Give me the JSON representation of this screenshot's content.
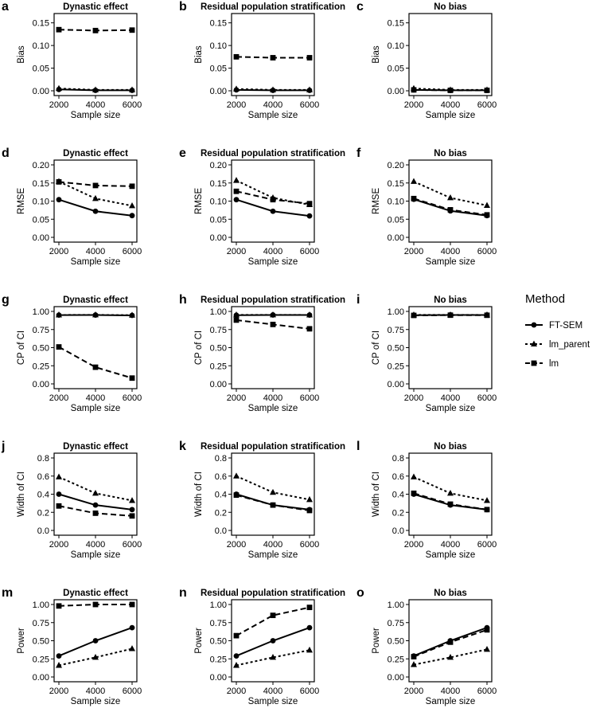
{
  "chart_data": {
    "type": "line",
    "x": [
      2000,
      4000,
      6000
    ],
    "xlabel": "Sample size",
    "xticks": [
      2000,
      4000,
      6000
    ],
    "xlim": [
      2000,
      6000
    ],
    "legend": {
      "title": "Method",
      "placement": "right",
      "entries": [
        {
          "name": "FT-SEM",
          "linestyle": "solid",
          "marker": "circle"
        },
        {
          "name": "lm_parent",
          "linestyle": "dotted",
          "marker": "triangle"
        },
        {
          "name": "lm",
          "linestyle": "dashed",
          "marker": "square"
        }
      ]
    },
    "columns": [
      "Dynastic effect",
      "Residual population stratification",
      "No bias"
    ],
    "rows": [
      {
        "ylabel": "Bias",
        "ylim": [
          0,
          0.16
        ],
        "yticks": [
          "0.00",
          "0.05",
          "0.10",
          "0.15"
        ],
        "letters": [
          "a",
          "b",
          "c"
        ],
        "panels": [
          {
            "FT-SEM": [
              0.003,
              0.001,
              0.001
            ],
            "lm_parent": [
              0.005,
              0.002,
              0.002
            ],
            "lm": [
              0.135,
              0.133,
              0.134
            ]
          },
          {
            "FT-SEM": [
              0.002,
              0.001,
              0.001
            ],
            "lm_parent": [
              0.004,
              0.002,
              0.002
            ],
            "lm": [
              0.075,
              0.073,
              0.073
            ]
          },
          {
            "FT-SEM": [
              0.002,
              0.001,
              0.001
            ],
            "lm_parent": [
              0.005,
              0.002,
              0.002
            ],
            "lm": [
              0.002,
              0.001,
              0.001
            ]
          }
        ]
      },
      {
        "ylabel": "RMSE",
        "ylim": [
          0,
          0.2
        ],
        "yticks": [
          "0.00",
          "0.05",
          "0.10",
          "0.15",
          "0.20"
        ],
        "letters": [
          "d",
          "e",
          "f"
        ],
        "panels": [
          {
            "FT-SEM": [
              0.104,
              0.072,
              0.06
            ],
            "lm_parent": [
              0.154,
              0.107,
              0.087
            ],
            "lm": [
              0.153,
              0.143,
              0.141
            ]
          },
          {
            "FT-SEM": [
              0.104,
              0.072,
              0.059
            ],
            "lm_parent": [
              0.157,
              0.109,
              0.09
            ],
            "lm": [
              0.127,
              0.104,
              0.093
            ]
          },
          {
            "FT-SEM": [
              0.105,
              0.073,
              0.06
            ],
            "lm_parent": [
              0.154,
              0.109,
              0.088
            ],
            "lm": [
              0.107,
              0.076,
              0.062
            ]
          }
        ]
      },
      {
        "ylabel": "CP of CI",
        "ylim": [
          0,
          1
        ],
        "yticks": [
          "0.00",
          "0.25",
          "0.50",
          "0.75",
          "1.00"
        ],
        "letters": [
          "g",
          "h",
          "i"
        ],
        "panels": [
          {
            "FT-SEM": [
              0.949,
              0.95,
              0.945
            ],
            "lm_parent": [
              0.951,
              0.952,
              0.948
            ],
            "lm": [
              0.51,
              0.23,
              0.08
            ]
          },
          {
            "FT-SEM": [
              0.948,
              0.951,
              0.95
            ],
            "lm_parent": [
              0.952,
              0.952,
              0.951
            ],
            "lm": [
              0.88,
              0.82,
              0.76
            ]
          },
          {
            "FT-SEM": [
              0.948,
              0.951,
              0.95
            ],
            "lm_parent": [
              0.952,
              0.952,
              0.951
            ],
            "lm": [
              0.945,
              0.948,
              0.947
            ]
          }
        ]
      },
      {
        "ylabel": "Width of CI",
        "ylim": [
          0,
          0.8
        ],
        "yticks": [
          "0.0",
          "0.2",
          "0.4",
          "0.6",
          "0.8"
        ],
        "letters": [
          "j",
          "k",
          "l"
        ],
        "panels": [
          {
            "FT-SEM": [
              0.4,
              0.28,
              0.23
            ],
            "lm_parent": [
              0.59,
              0.41,
              0.33
            ],
            "lm": [
              0.27,
              0.19,
              0.16
            ]
          },
          {
            "FT-SEM": [
              0.4,
              0.28,
              0.23
            ],
            "lm_parent": [
              0.6,
              0.42,
              0.34
            ],
            "lm": [
              0.39,
              0.28,
              0.22
            ]
          },
          {
            "FT-SEM": [
              0.4,
              0.28,
              0.23
            ],
            "lm_parent": [
              0.59,
              0.41,
              0.33
            ],
            "lm": [
              0.41,
              0.29,
              0.23
            ]
          }
        ]
      },
      {
        "ylabel": "Power",
        "ylim": [
          0,
          1
        ],
        "yticks": [
          "0.00",
          "0.25",
          "0.50",
          "0.75",
          "1.00"
        ],
        "letters": [
          "m",
          "n",
          "o"
        ],
        "panels": [
          {
            "FT-SEM": [
              0.29,
              0.5,
              0.68
            ],
            "lm_parent": [
              0.16,
              0.27,
              0.39
            ],
            "lm": [
              0.98,
              1.0,
              1.0
            ]
          },
          {
            "FT-SEM": [
              0.29,
              0.5,
              0.68
            ],
            "lm_parent": [
              0.16,
              0.27,
              0.37
            ],
            "lm": [
              0.57,
              0.85,
              0.96
            ]
          },
          {
            "FT-SEM": [
              0.29,
              0.5,
              0.68
            ],
            "lm_parent": [
              0.17,
              0.27,
              0.38
            ],
            "lm": [
              0.28,
              0.48,
              0.65
            ]
          }
        ]
      }
    ]
  }
}
